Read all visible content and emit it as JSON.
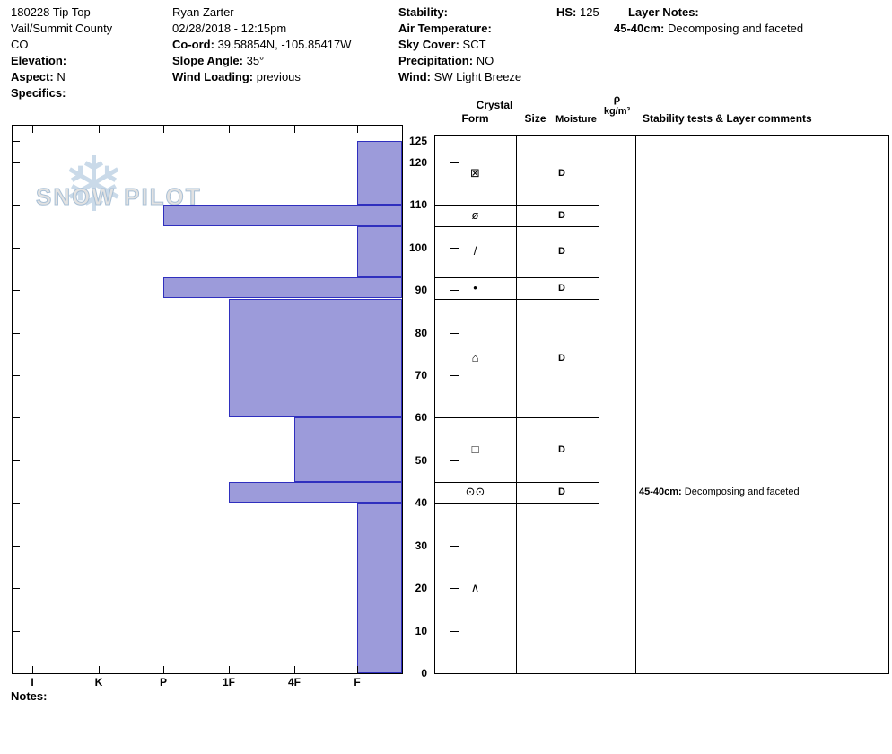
{
  "header": {
    "site": {
      "title": "180228 Tip Top",
      "region": "Vail/Summit County",
      "state": "CO",
      "elevation_label": "Elevation:",
      "aspect_label": "Aspect:",
      "aspect_value": "N",
      "specifics_label": "Specifics:"
    },
    "observer": {
      "name": "Ryan Zarter",
      "datetime": "02/28/2018 - 12:15pm",
      "coord_label": "Co-ord:",
      "coord_value": "39.58854N, -105.85417W",
      "slope_angle_label": "Slope Angle:",
      "slope_angle_value": "35°",
      "wind_loading_label": "Wind Loading:",
      "wind_loading_value": "previous"
    },
    "conditions": {
      "stability_label": "Stability:",
      "air_temp_label": "Air Temperature:",
      "sky_cover_label": "Sky Cover:",
      "sky_cover_value": "SCT",
      "precipitation_label": "Precipitation:",
      "precipitation_value": "NO",
      "wind_label": "Wind:",
      "wind_value": "SW Light Breeze"
    },
    "hs_label": "HS:",
    "hs_value": "125",
    "layer_notes_label": "Layer Notes:",
    "layer_note_range": "45-40cm:",
    "layer_note_text": "Decomposing and faceted"
  },
  "table_header": {
    "crystal": "Crystal",
    "form": "Form",
    "size": "Size",
    "moisture": "Moisture",
    "density_symbol": "ρ",
    "density_units": "kg/m³",
    "comments": "Stability tests & Layer comments"
  },
  "watermark": {
    "snowflake": "❄",
    "text": "SNOW PILOT"
  },
  "notes_label": "Notes:",
  "chart_data": {
    "type": "bar",
    "description": "Snow pit hand-hardness profile, hardness increases to the left, depth in cm on right axis",
    "hardness_scale": [
      "I",
      "K",
      "P",
      "1F",
      "4F",
      "F"
    ],
    "depth_ticks": [
      0,
      10,
      20,
      30,
      40,
      50,
      60,
      70,
      80,
      90,
      100,
      110,
      120,
      125
    ],
    "ylim": [
      0,
      125
    ],
    "total_height_cm": 125,
    "layers": [
      {
        "top": 125,
        "bottom": 110,
        "hardness": "F",
        "form": "⊠",
        "moisture": "D"
      },
      {
        "top": 110,
        "bottom": 105,
        "hardness": "P",
        "form": "ø",
        "moisture": "D"
      },
      {
        "top": 105,
        "bottom": 93,
        "hardness": "F",
        "form": "/",
        "moisture": "D"
      },
      {
        "top": 93,
        "bottom": 88,
        "hardness": "P",
        "form": "•",
        "moisture": "D"
      },
      {
        "top": 88,
        "bottom": 60,
        "hardness": "1F",
        "form": "⌂",
        "moisture": "D"
      },
      {
        "top": 60,
        "bottom": 45,
        "hardness": "4F",
        "form": "□",
        "moisture": "D"
      },
      {
        "top": 45,
        "bottom": 40,
        "hardness": "1F",
        "form": "⊙⊙",
        "moisture": "D",
        "comment_range": "45-40cm:",
        "comment_text": "Decomposing and faceted"
      },
      {
        "top": 40,
        "bottom": 0,
        "hardness": "F",
        "form": "∧"
      }
    ],
    "bar_fill": "#9c9bda",
    "bar_border": "#2f2fbe"
  }
}
